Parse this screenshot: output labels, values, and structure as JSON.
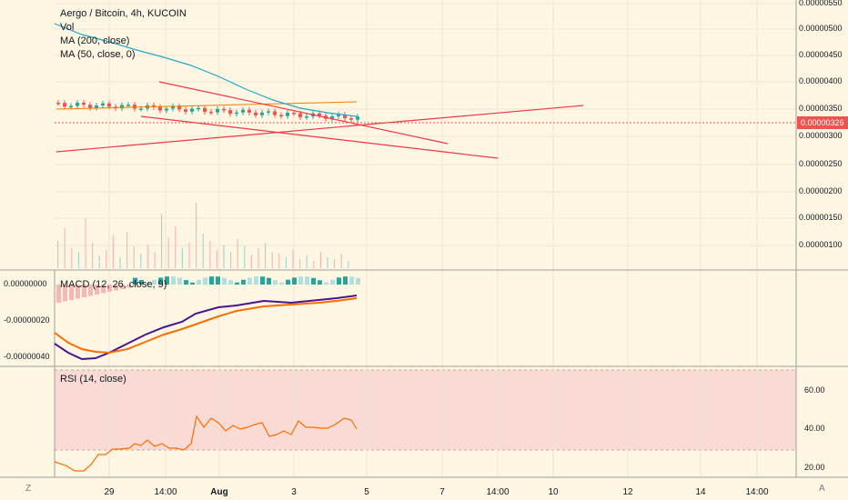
{
  "main_legend": {
    "symbol": "Aergo / Bitcoin, 4h, KUCOIN",
    "vol": "Vol",
    "ma200": "MA (200, close)",
    "ma50": "MA (50, close, 0)"
  },
  "macd_legend": "MACD (12, 26, close, 9)",
  "rsi_legend": "RSI (14, close)",
  "price_axis": [
    "0.00000550",
    "0.00000500",
    "0.00000450",
    "0.00000400",
    "0.00000350",
    "0.00000300",
    "0.00000250",
    "0.00000200",
    "0.00000150",
    "0.00000100"
  ],
  "current_price": "0.00000326",
  "macd_axis": [
    "0.00000000",
    "-0.00000020",
    "-0.00000040"
  ],
  "rsi_axis": [
    "60.00",
    "40.00",
    "20.00"
  ],
  "time_axis": [
    "29",
    "14:00",
    "Aug",
    "3",
    "5",
    "7",
    "14:00",
    "10",
    "12",
    "14",
    "14:00"
  ],
  "corner_left": "Z",
  "corner_right": "A",
  "colors": {
    "background": "#fdf6e3",
    "up": "#26a69a",
    "down": "#ef5350",
    "ma200": "#26a6c9",
    "macd": "#4a148c",
    "signal": "#ff6d00",
    "rsi": "#ff6d00",
    "trendline": "#f23645"
  }
}
